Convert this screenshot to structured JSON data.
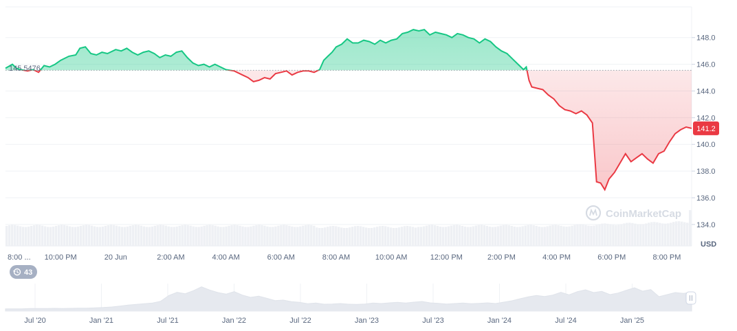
{
  "chart_data": {
    "type": "area",
    "baseline_label": "145.5476",
    "baseline": 145.5476,
    "current_label": "141.2",
    "current": 141.2,
    "currency_label": "USD",
    "watermark": "CoinMarketCap",
    "history_badge": "43",
    "ylim": [
      132.4,
      150.3
    ],
    "yticks": [
      {
        "value": 148,
        "label": "148.0"
      },
      {
        "value": 146,
        "label": "146.0"
      },
      {
        "value": 144,
        "label": "144.0"
      },
      {
        "value": 142,
        "label": "142.0"
      },
      {
        "value": 140,
        "label": "140.0"
      },
      {
        "value": 138,
        "label": "138.0"
      },
      {
        "value": 136,
        "label": "136.0"
      },
      {
        "value": 134,
        "label": "134.0"
      }
    ],
    "xticks": [
      {
        "t": 0,
        "label": "8:00 ..."
      },
      {
        "t": 2,
        "label": "10:00 PM"
      },
      {
        "t": 4,
        "label": "20 Jun"
      },
      {
        "t": 6,
        "label": "2:00 AM"
      },
      {
        "t": 8,
        "label": "4:00 AM"
      },
      {
        "t": 10,
        "label": "6:00 AM"
      },
      {
        "t": 12,
        "label": "8:00 AM"
      },
      {
        "t": 14,
        "label": "10:00 AM"
      },
      {
        "t": 16,
        "label": "12:00 PM"
      },
      {
        "t": 18,
        "label": "2:00 PM"
      },
      {
        "t": 20,
        "label": "4:00 PM"
      },
      {
        "t": 22,
        "label": "6:00 PM"
      },
      {
        "t": 24,
        "label": "8:00 PM"
      }
    ],
    "xlim": [
      0,
      24.9
    ],
    "series": [
      {
        "points": [
          [
            0.0,
            145.7
          ],
          [
            0.25,
            146.0
          ],
          [
            0.4,
            145.7
          ],
          [
            0.55,
            145.6
          ],
          [
            0.8,
            145.5
          ],
          [
            1.0,
            145.6
          ],
          [
            1.2,
            145.4
          ],
          [
            1.4,
            145.9
          ],
          [
            1.6,
            145.8
          ],
          [
            1.8,
            146.0
          ],
          [
            2.0,
            146.3
          ],
          [
            2.3,
            146.6
          ],
          [
            2.55,
            146.7
          ],
          [
            2.7,
            147.2
          ],
          [
            2.9,
            147.3
          ],
          [
            3.1,
            146.8
          ],
          [
            3.3,
            146.7
          ],
          [
            3.5,
            146.9
          ],
          [
            3.7,
            146.8
          ],
          [
            4.0,
            147.1
          ],
          [
            4.2,
            147.0
          ],
          [
            4.4,
            147.2
          ],
          [
            4.6,
            146.9
          ],
          [
            4.8,
            146.7
          ],
          [
            5.0,
            146.9
          ],
          [
            5.2,
            147.0
          ],
          [
            5.4,
            146.8
          ],
          [
            5.6,
            146.5
          ],
          [
            5.8,
            146.7
          ],
          [
            6.0,
            146.6
          ],
          [
            6.2,
            146.9
          ],
          [
            6.4,
            147.0
          ],
          [
            6.6,
            146.5
          ],
          [
            6.8,
            146.1
          ],
          [
            7.0,
            145.9
          ],
          [
            7.2,
            146.0
          ],
          [
            7.4,
            145.8
          ],
          [
            7.6,
            146.0
          ],
          [
            7.8,
            145.8
          ],
          [
            8.0,
            145.6
          ],
          [
            8.3,
            145.5
          ],
          [
            8.6,
            145.2
          ],
          [
            8.8,
            145.0
          ],
          [
            9.0,
            144.7
          ],
          [
            9.2,
            144.8
          ],
          [
            9.4,
            145.0
          ],
          [
            9.6,
            144.9
          ],
          [
            9.8,
            145.3
          ],
          [
            10.0,
            145.4
          ],
          [
            10.2,
            145.5
          ],
          [
            10.4,
            145.2
          ],
          [
            10.6,
            145.4
          ],
          [
            10.8,
            145.5
          ],
          [
            11.0,
            145.5
          ],
          [
            11.2,
            145.4
          ],
          [
            11.4,
            145.6
          ],
          [
            11.55,
            146.3
          ],
          [
            11.7,
            146.6
          ],
          [
            11.85,
            146.9
          ],
          [
            12.0,
            147.3
          ],
          [
            12.2,
            147.5
          ],
          [
            12.4,
            147.9
          ],
          [
            12.6,
            147.6
          ],
          [
            12.8,
            147.6
          ],
          [
            13.0,
            147.8
          ],
          [
            13.2,
            147.7
          ],
          [
            13.4,
            147.5
          ],
          [
            13.6,
            147.8
          ],
          [
            13.8,
            147.6
          ],
          [
            14.0,
            147.8
          ],
          [
            14.2,
            147.9
          ],
          [
            14.4,
            148.3
          ],
          [
            14.6,
            148.4
          ],
          [
            14.8,
            148.6
          ],
          [
            15.0,
            148.5
          ],
          [
            15.2,
            148.6
          ],
          [
            15.4,
            148.2
          ],
          [
            15.6,
            148.4
          ],
          [
            15.8,
            148.3
          ],
          [
            16.0,
            148.2
          ],
          [
            16.2,
            148.0
          ],
          [
            16.4,
            148.3
          ],
          [
            16.6,
            148.2
          ],
          [
            16.8,
            148.0
          ],
          [
            17.0,
            147.9
          ],
          [
            17.2,
            147.6
          ],
          [
            17.4,
            147.9
          ],
          [
            17.6,
            147.7
          ],
          [
            17.8,
            147.3
          ],
          [
            18.0,
            147.0
          ],
          [
            18.2,
            146.8
          ],
          [
            18.4,
            146.4
          ],
          [
            18.6,
            146.0
          ],
          [
            18.8,
            145.6
          ],
          [
            18.9,
            145.8
          ],
          [
            19.0,
            144.8
          ],
          [
            19.1,
            144.3
          ],
          [
            19.3,
            144.2
          ],
          [
            19.5,
            144.1
          ],
          [
            19.7,
            143.7
          ],
          [
            19.9,
            143.4
          ],
          [
            20.1,
            142.9
          ],
          [
            20.3,
            142.6
          ],
          [
            20.5,
            142.5
          ],
          [
            20.7,
            142.3
          ],
          [
            20.9,
            142.5
          ],
          [
            21.1,
            142.2
          ],
          [
            21.3,
            141.6
          ],
          [
            21.45,
            137.2
          ],
          [
            21.6,
            137.1
          ],
          [
            21.75,
            136.6
          ],
          [
            21.9,
            137.4
          ],
          [
            22.1,
            137.9
          ],
          [
            22.3,
            138.6
          ],
          [
            22.5,
            139.3
          ],
          [
            22.7,
            138.7
          ],
          [
            22.9,
            139.0
          ],
          [
            23.1,
            139.3
          ],
          [
            23.3,
            138.9
          ],
          [
            23.5,
            138.6
          ],
          [
            23.7,
            139.3
          ],
          [
            23.9,
            139.5
          ],
          [
            24.1,
            140.2
          ],
          [
            24.3,
            140.8
          ],
          [
            24.5,
            141.1
          ],
          [
            24.7,
            141.3
          ],
          [
            24.9,
            141.2
          ]
        ]
      }
    ],
    "volume_bars": 250,
    "navigator": {
      "labels": [
        "Jul '20",
        "Jan '21",
        "Jul '21",
        "Jan '22",
        "Jul '22",
        "Jan '23",
        "Jul '23",
        "Jan '24",
        "Jul '24",
        "Jan '25"
      ],
      "values": [
        1.0,
        1.0,
        1.0,
        1.1,
        1.1,
        1.1,
        1.2,
        1.1,
        1.2,
        1.3,
        1.3,
        1.4,
        1.6,
        1.8,
        2.2,
        2.6,
        2.9,
        3.2,
        3.5,
        4.3,
        6.8,
        8.2,
        7.6,
        8.9,
        10.6,
        9.2,
        8.1,
        7.4,
        8.5,
        7.0,
        6.0,
        6.5,
        5.6,
        4.6,
        4.8,
        4.1,
        3.8,
        3.2,
        3.5,
        3.0,
        3.1,
        3.3,
        3.0,
        2.9,
        3.1,
        3.5,
        3.3,
        3.6,
        3.8,
        3.5,
        3.9,
        4.2,
        3.6,
        3.4,
        3.1,
        3.3,
        3.5,
        3.2,
        3.4,
        3.6,
        3.3,
        3.9,
        4.5,
        5.4,
        6.2,
        6.8,
        6.4,
        7.0,
        8.2,
        7.1,
        8.5,
        9.3,
        8.1,
        8.6,
        7.2,
        7.9,
        9.1,
        10.2,
        8.7,
        9.4,
        6.3,
        7.2,
        8.1,
        7.7,
        8.3
      ]
    }
  }
}
